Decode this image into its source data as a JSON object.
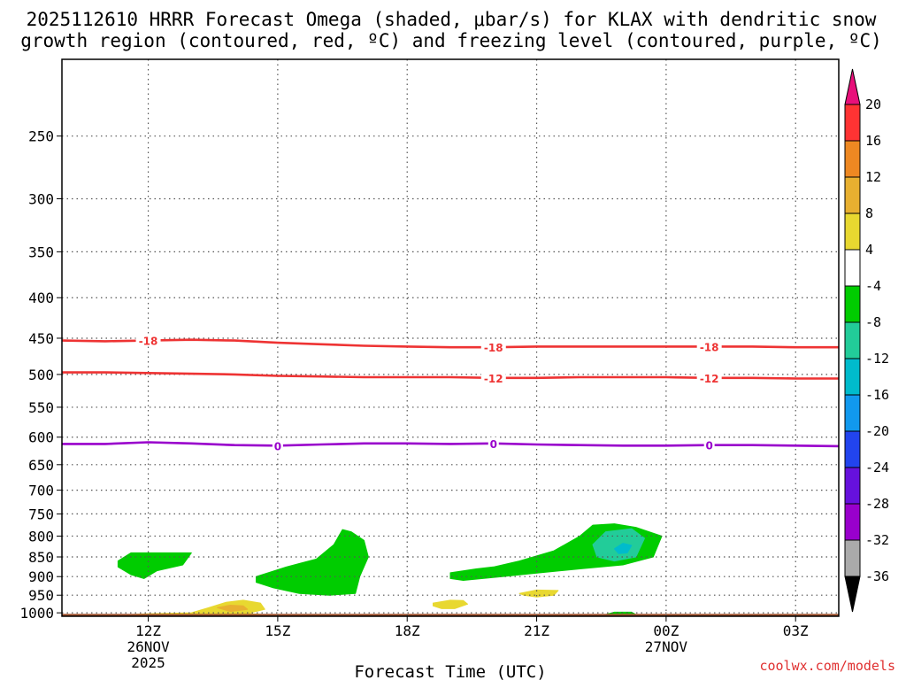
{
  "chart_data": {
    "type": "time-height cross section",
    "title_line1": "2025112610 HRRR Forecast Omega (shaded, μbar/s) for KLAX with dendritic snow",
    "title_line2": "growth region (contoured, red, ºC) and freezing level (contoured, purple, ºC)",
    "xlabel": "Forecast Time (UTC)",
    "ylabel": "",
    "credit": "coolwx.com/models",
    "pressure_levels": [
      250,
      300,
      350,
      400,
      450,
      500,
      550,
      600,
      650,
      700,
      750,
      800,
      850,
      900,
      950,
      1000
    ],
    "ylim": [
      200,
      1010
    ],
    "xlim_hours": [
      10,
      28
    ],
    "x_ticks": [
      {
        "hour": 12,
        "label": "12Z",
        "sub": [
          "26NOV",
          "2025"
        ]
      },
      {
        "hour": 15,
        "label": "15Z",
        "sub": []
      },
      {
        "hour": 18,
        "label": "18Z",
        "sub": []
      },
      {
        "hour": 21,
        "label": "21Z",
        "sub": []
      },
      {
        "hour": 24,
        "label": "00Z",
        "sub": [
          "27NOV"
        ]
      },
      {
        "hour": 27,
        "label": "03Z",
        "sub": []
      }
    ],
    "colorbar": {
      "ticks": [
        20,
        16,
        12,
        8,
        4,
        -4,
        -8,
        -12,
        -16,
        -20,
        -24,
        -28,
        -32,
        -36
      ],
      "bins": [
        {
          "color": "#ff3333",
          "label": ""
        },
        {
          "color": "#ee8822",
          "label": ""
        },
        {
          "color": "#e8b030",
          "label": ""
        },
        {
          "color": "#e8d830",
          "label": ""
        },
        {
          "color": "#ffffff",
          "label": ""
        },
        {
          "color": "#00cc00",
          "label": ""
        },
        {
          "color": "#22cc99",
          "label": ""
        },
        {
          "color": "#00bbcc",
          "label": ""
        },
        {
          "color": "#1199ee",
          "label": ""
        },
        {
          "color": "#2244ee",
          "label": ""
        },
        {
          "color": "#6611dd",
          "label": ""
        },
        {
          "color": "#9900cc",
          "label": ""
        },
        {
          "color": "#aaaaaa",
          "label": ""
        }
      ],
      "top_arrow_color": "#e8107a",
      "bottom_arrow_color": "#000000"
    },
    "contours": [
      {
        "name": "dgz-minus18",
        "value": -18,
        "label": "-18",
        "color": "#ee3333",
        "points": [
          [
            10,
            453
          ],
          [
            11,
            454
          ],
          [
            12,
            453
          ],
          [
            13,
            452
          ],
          [
            14,
            453
          ],
          [
            15,
            456
          ],
          [
            16,
            458
          ],
          [
            17,
            460
          ],
          [
            18,
            461
          ],
          [
            19,
            462
          ],
          [
            20,
            462
          ],
          [
            21,
            461
          ],
          [
            22,
            461
          ],
          [
            23,
            461
          ],
          [
            24,
            461
          ],
          [
            25,
            461
          ],
          [
            26,
            461
          ],
          [
            27,
            462
          ],
          [
            28,
            462
          ]
        ],
        "label_hours": [
          12,
          20,
          25
        ]
      },
      {
        "name": "dgz-minus12",
        "value": -12,
        "label": "-12",
        "color": "#ee3333",
        "points": [
          [
            10,
            497
          ],
          [
            11,
            497
          ],
          [
            12,
            498
          ],
          [
            13,
            499
          ],
          [
            14,
            500
          ],
          [
            15,
            502
          ],
          [
            16,
            503
          ],
          [
            17,
            504
          ],
          [
            18,
            504
          ],
          [
            19,
            504
          ],
          [
            20,
            505
          ],
          [
            21,
            505
          ],
          [
            22,
            504
          ],
          [
            23,
            504
          ],
          [
            24,
            504
          ],
          [
            25,
            505
          ],
          [
            26,
            505
          ],
          [
            27,
            506
          ],
          [
            28,
            506
          ]
        ],
        "label_hours": [
          20,
          25
        ]
      },
      {
        "name": "freezing-level",
        "value": 0,
        "label": "0",
        "color": "#9900cc",
        "points": [
          [
            10,
            612
          ],
          [
            11,
            612
          ],
          [
            12,
            609
          ],
          [
            13,
            611
          ],
          [
            14,
            614
          ],
          [
            15,
            615
          ],
          [
            16,
            613
          ],
          [
            17,
            611
          ],
          [
            18,
            611
          ],
          [
            19,
            612
          ],
          [
            20,
            611
          ],
          [
            21,
            613
          ],
          [
            22,
            614
          ],
          [
            23,
            615
          ],
          [
            24,
            615
          ],
          [
            25,
            614
          ],
          [
            26,
            614
          ],
          [
            27,
            615
          ],
          [
            28,
            616
          ]
        ],
        "label_hours": [
          15,
          20,
          25
        ]
      }
    ],
    "omega_regions": [
      {
        "name": "green-blob-12z",
        "value": -6,
        "color": "#00cc00",
        "points": [
          [
            11.3,
            860
          ],
          [
            11.6,
            840
          ],
          [
            12.4,
            840
          ],
          [
            13.0,
            840
          ],
          [
            12.8,
            870
          ],
          [
            12.2,
            885
          ],
          [
            11.9,
            905
          ],
          [
            11.6,
            895
          ],
          [
            11.3,
            875
          ]
        ]
      },
      {
        "name": "green-blob-15z",
        "value": -6,
        "color": "#00cc00",
        "points": [
          [
            14.5,
            900
          ],
          [
            15.2,
            875
          ],
          [
            15.9,
            855
          ],
          [
            16.3,
            820
          ],
          [
            16.5,
            785
          ],
          [
            16.7,
            790
          ],
          [
            17.0,
            810
          ],
          [
            17.1,
            850
          ],
          [
            16.9,
            900
          ],
          [
            16.8,
            945
          ],
          [
            16.2,
            950
          ],
          [
            15.5,
            945
          ],
          [
            14.9,
            930
          ],
          [
            14.5,
            915
          ]
        ]
      },
      {
        "name": "green-blob-21z",
        "value": -6,
        "color": "#00cc00",
        "points": [
          [
            19.0,
            890
          ],
          [
            19.6,
            880
          ],
          [
            20.0,
            875
          ],
          [
            20.6,
            860
          ],
          [
            21.4,
            835
          ],
          [
            22.0,
            800
          ],
          [
            22.3,
            775
          ],
          [
            22.8,
            772
          ],
          [
            23.3,
            780
          ],
          [
            23.9,
            800
          ],
          [
            23.7,
            850
          ],
          [
            23.0,
            870
          ],
          [
            22.0,
            880
          ],
          [
            20.8,
            893
          ],
          [
            20.2,
            900
          ],
          [
            19.3,
            910
          ],
          [
            19.0,
            905
          ]
        ]
      },
      {
        "name": "teal-blob-21z",
        "value": -10,
        "color": "#22cc99",
        "points": [
          [
            22.3,
            820
          ],
          [
            22.6,
            790
          ],
          [
            23.2,
            783
          ],
          [
            23.5,
            805
          ],
          [
            23.3,
            850
          ],
          [
            22.8,
            860
          ],
          [
            22.4,
            850
          ]
        ]
      },
      {
        "name": "cyan-blob-21z",
        "value": -14,
        "color": "#00bbcc",
        "points": [
          [
            22.8,
            830
          ],
          [
            23.0,
            817
          ],
          [
            23.2,
            822
          ],
          [
            23.1,
            840
          ],
          [
            22.9,
            842
          ]
        ]
      },
      {
        "name": "green-blob-surface",
        "value": -5,
        "color": "#00cc00",
        "points": [
          [
            22.6,
            1005
          ],
          [
            22.8,
            998
          ],
          [
            23.2,
            998
          ],
          [
            23.3,
            1005
          ]
        ]
      },
      {
        "name": "yellow-blob-surface",
        "value": 5,
        "color": "#e8d830",
        "points": [
          [
            11.0,
            1008
          ],
          [
            12.0,
            1003
          ],
          [
            13.0,
            1000
          ],
          [
            13.4,
            985
          ],
          [
            13.8,
            970
          ],
          [
            14.2,
            964
          ],
          [
            14.6,
            972
          ],
          [
            14.7,
            990
          ],
          [
            14.3,
            1002
          ],
          [
            15.0,
            1008
          ]
        ]
      },
      {
        "name": "orange-blob-surface",
        "value": 9,
        "color": "#e8b030",
        "points": [
          [
            13.6,
            985
          ],
          [
            13.9,
            978
          ],
          [
            14.2,
            980
          ],
          [
            14.3,
            990
          ],
          [
            13.9,
            996
          ]
        ]
      },
      {
        "name": "yellow-blob-19z",
        "value": 5,
        "color": "#e8d830",
        "points": [
          [
            18.6,
            972
          ],
          [
            19.0,
            964
          ],
          [
            19.3,
            965
          ],
          [
            19.4,
            975
          ],
          [
            19.1,
            988
          ],
          [
            18.8,
            988
          ],
          [
            18.6,
            980
          ]
        ]
      },
      {
        "name": "yellow-blob-21z",
        "value": 5,
        "color": "#e8d830",
        "points": [
          [
            20.6,
            945
          ],
          [
            21.0,
            936
          ],
          [
            21.5,
            937
          ],
          [
            21.4,
            950
          ],
          [
            21.0,
            955
          ],
          [
            20.7,
            950
          ]
        ]
      }
    ],
    "terrain": {
      "color": "#a0522d",
      "top_pressure": 1003
    }
  }
}
